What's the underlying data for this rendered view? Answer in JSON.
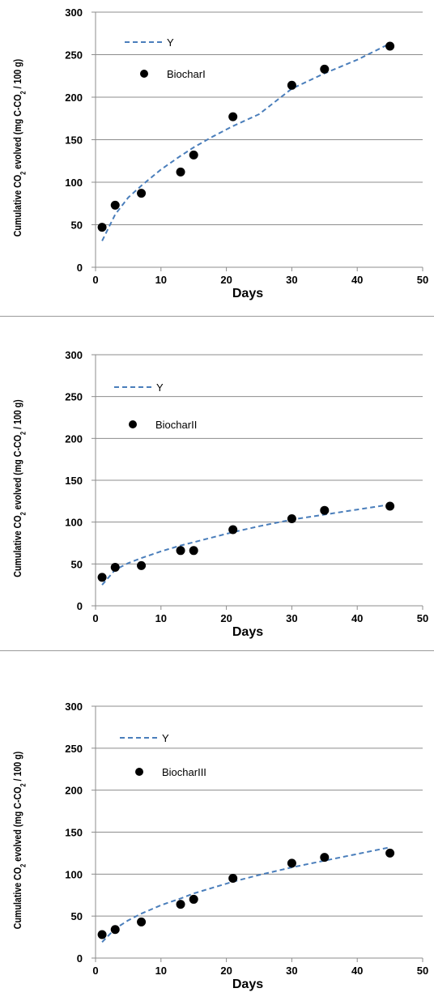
{
  "chart_data": [
    {
      "type": "scatter",
      "xlabel": "Days",
      "ylabel": "Cumulative CO2 evolved (mg C-CO2 / 100 g)",
      "ylabel_parts": [
        "Cumulative CO",
        "2",
        " evolved (mg C-CO",
        "2",
        " / 100 g)"
      ],
      "xlim": [
        0,
        50
      ],
      "ylim": [
        0,
        300
      ],
      "xticks": [
        "0",
        "10",
        "20",
        "30",
        "40",
        "50"
      ],
      "yticks": [
        "0",
        "50",
        "100",
        "150",
        "200",
        "250",
        "300"
      ],
      "grid": "horizontal",
      "legend_position": "top-left",
      "series": [
        {
          "name": "Y",
          "kind": "dashed-line",
          "color": "#4a7ebb",
          "x": [
            1,
            3,
            5,
            7,
            10,
            13,
            15,
            18,
            21,
            25,
            30,
            35,
            40,
            45
          ],
          "y": [
            31,
            62,
            82,
            96,
            115,
            131,
            141,
            154,
            166,
            180,
            210,
            228,
            244,
            263
          ]
        },
        {
          "name": "BiocharI",
          "kind": "points",
          "color": "#000000",
          "x": [
            1,
            3,
            7,
            13,
            15,
            21,
            30,
            35,
            45
          ],
          "y": [
            47,
            73,
            87,
            112,
            132,
            177,
            214,
            233,
            260
          ]
        }
      ]
    },
    {
      "type": "scatter",
      "xlabel": "Days",
      "ylabel": "Cumulative CO2 evolved (mg C-CO2 / 100 g)",
      "ylabel_parts": [
        "Cumulative CO",
        "2",
        " evolved (mg C-CO",
        "2",
        " / 100 g)"
      ],
      "xlim": [
        0,
        50
      ],
      "ylim": [
        0,
        300
      ],
      "xticks": [
        "0",
        "10",
        "20",
        "30",
        "40",
        "50"
      ],
      "yticks": [
        "0",
        "50",
        "100",
        "150",
        "200",
        "250",
        "300"
      ],
      "grid": "horizontal",
      "legend_position": "top-left",
      "series": [
        {
          "name": "Y",
          "kind": "dashed-line",
          "color": "#4a7ebb",
          "x": [
            1,
            3,
            5,
            7,
            10,
            13,
            15,
            18,
            21,
            25,
            30,
            35,
            40,
            45
          ],
          "y": [
            25,
            43,
            51,
            57,
            65,
            72,
            76,
            82,
            88,
            95,
            103,
            109,
            115,
            121
          ]
        },
        {
          "name": "BiocharII",
          "kind": "points",
          "color": "#000000",
          "x": [
            1,
            3,
            7,
            13,
            15,
            21,
            30,
            35,
            45
          ],
          "y": [
            34,
            46,
            48,
            66,
            66,
            91,
            104,
            114,
            119
          ]
        }
      ]
    },
    {
      "type": "scatter",
      "xlabel": "Days",
      "ylabel": "Cumulative CO2 evolved (mg C-CO2 / 100 g)",
      "ylabel_parts": [
        "Cumulative CO",
        "2",
        " evolved (mg C-CO",
        "2",
        " / 100 g)"
      ],
      "xlim": [
        0,
        50
      ],
      "ylim": [
        0,
        300
      ],
      "xticks": [
        "0",
        "10",
        "20",
        "30",
        "40",
        "50"
      ],
      "yticks": [
        "0",
        "50",
        "100",
        "150",
        "200",
        "250",
        "300"
      ],
      "grid": "horizontal",
      "legend_position": "top-left",
      "series": [
        {
          "name": "Y",
          "kind": "dashed-line",
          "color": "#4a7ebb",
          "x": [
            1,
            3,
            5,
            7,
            10,
            13,
            15,
            18,
            21,
            25,
            30,
            35,
            40,
            45
          ],
          "y": [
            19,
            35,
            45,
            53,
            63,
            71,
            77,
            84,
            91,
            99,
            108,
            116,
            124,
            132
          ]
        },
        {
          "name": "BiocharIII",
          "kind": "points",
          "color": "#000000",
          "x": [
            1,
            3,
            7,
            13,
            15,
            21,
            30,
            35,
            45
          ],
          "y": [
            28,
            34,
            43,
            64,
            70,
            95,
            113,
            120,
            125
          ]
        }
      ]
    }
  ]
}
